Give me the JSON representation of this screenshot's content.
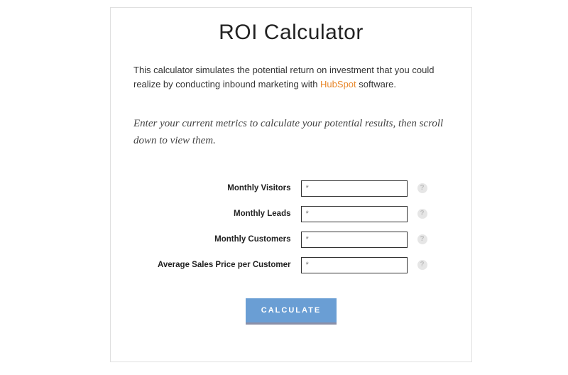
{
  "title": "ROI Calculator",
  "intro": {
    "prefix": "This calculator simulates the potential return on investment that you could realize by conducting inbound marketing with ",
    "link_text": "HubSpot",
    "suffix": " software."
  },
  "instruction": "Enter your current metrics to calculate your potential results, then scroll down to view them.",
  "fields": {
    "visitors": {
      "label": "Monthly Visitors",
      "placeholder": "*"
    },
    "leads": {
      "label": "Monthly Leads",
      "placeholder": "*"
    },
    "customers": {
      "label": "Monthly Customers",
      "placeholder": "*"
    },
    "avg_price": {
      "label": "Average Sales Price per Customer",
      "placeholder": "*"
    }
  },
  "help_glyph": "?",
  "calculate_label": "CALCULATE",
  "colors": {
    "link": "#e8872b",
    "button": "#6a9ed4",
    "shadow": "#8a8fa8",
    "border": "#e0e0e0"
  }
}
